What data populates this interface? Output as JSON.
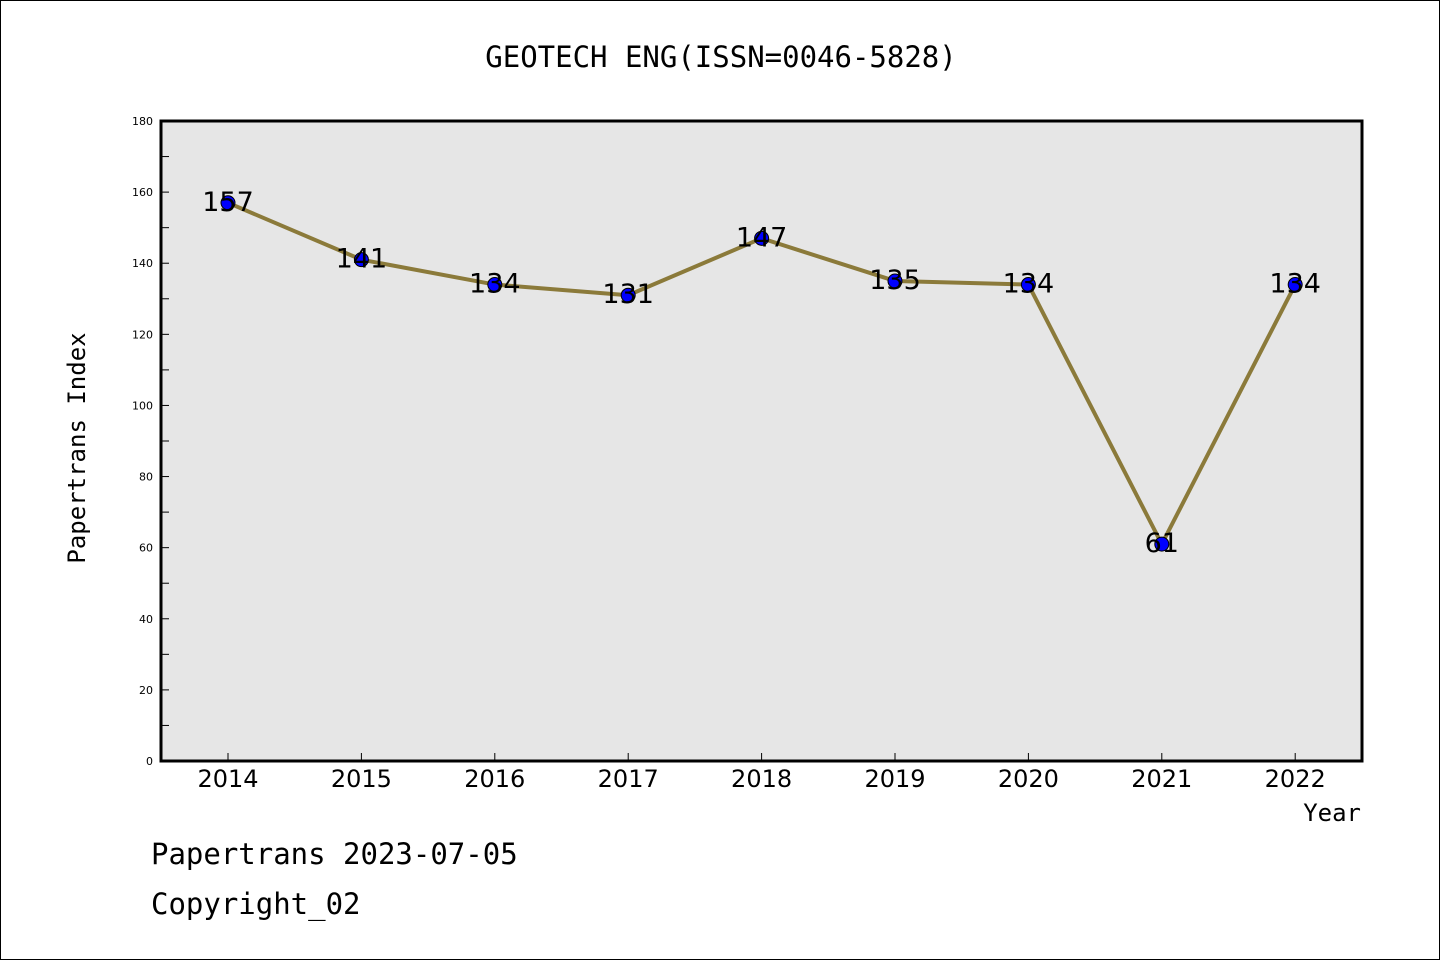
{
  "chart_data": {
    "type": "line",
    "title": "GEOTECH ENG(ISSN=0046-5828)",
    "xlabel": "Year",
    "ylabel": "Papertrans Index",
    "x": [
      "2014",
      "2015",
      "2016",
      "2017",
      "2018",
      "2019",
      "2020",
      "2021",
      "2022"
    ],
    "series": [
      {
        "values": [
          157,
          141,
          134,
          131,
          147,
          135,
          134,
          61,
          134
        ]
      }
    ],
    "data_labels": [
      "157",
      "141",
      "134",
      "131",
      "147",
      "135",
      "134",
      "61",
      "134"
    ],
    "ylim": [
      0,
      180
    ],
    "y_ticks": [
      "0",
      "20",
      "40",
      "60",
      "80",
      "100",
      "120",
      "140",
      "160",
      "180"
    ],
    "grid": false,
    "colors": {
      "line": "#8b7a3a",
      "marker": "#0000ff",
      "plot_background": "#e6e6e6"
    }
  },
  "footer": {
    "line1": "Papertrans 2023-07-05",
    "line2": "Copyright_02"
  }
}
